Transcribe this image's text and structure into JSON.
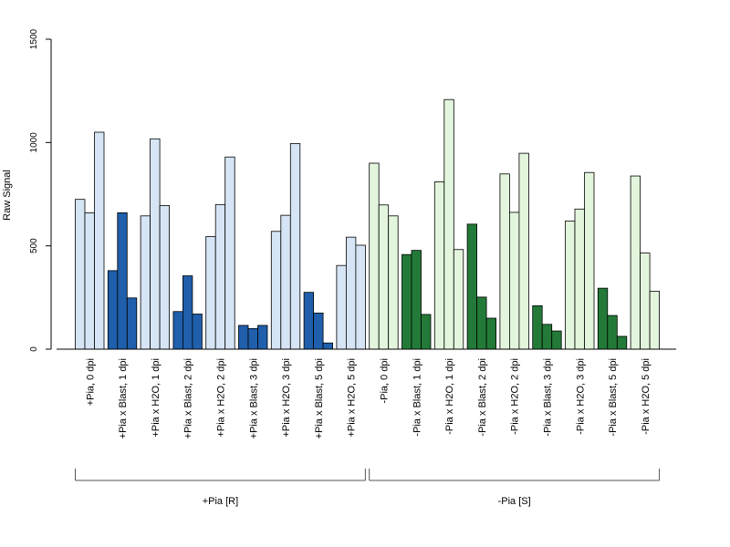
{
  "chart_data": {
    "type": "bar",
    "ylabel": "Raw Signal",
    "ylim": [
      0,
      1500
    ],
    "yticks": [
      0,
      500,
      1000,
      1500
    ],
    "categories": [
      "+Pia, 0 dpi",
      "+Pia x Blast, 1 dpi",
      "+Pia x H2O, 1 dpi",
      "+Pia x Blast, 2 dpi",
      "+Pia x H2O, 2 dpi",
      "+Pia x Blast, 3 dpi",
      "+Pia x H2O, 3 dpi",
      "+Pia x Blast, 5 dpi",
      "+Pia x H2O, 5 dpi",
      "-Pia, 0 dpi",
      "-Pia x Blast, 1 dpi",
      "-Pia x H2O, 1 dpi",
      "-Pia x Blast, 2 dpi",
      "-Pia x H2O, 2 dpi",
      "-Pia x Blast, 3 dpi",
      "-Pia x H2O, 3 dpi",
      "-Pia x Blast, 5 dpi",
      "-Pia x H2O, 5 dpi"
    ],
    "values": [
      [
        725,
        660,
        1050
      ],
      [
        380,
        660,
        248
      ],
      [
        645,
        1018,
        695
      ],
      [
        182,
        355,
        170
      ],
      [
        545,
        700,
        930
      ],
      [
        115,
        100,
        115
      ],
      [
        570,
        648,
        995
      ],
      [
        275,
        175,
        30
      ],
      [
        405,
        542,
        503
      ],
      [
        900,
        698,
        645
      ],
      [
        458,
        478,
        168
      ],
      [
        810,
        1208,
        482
      ],
      [
        605,
        252,
        150
      ],
      [
        848,
        662,
        948
      ],
      [
        210,
        120,
        88
      ],
      [
        620,
        678,
        855
      ],
      [
        295,
        163,
        62
      ],
      [
        838,
        465,
        280
      ]
    ],
    "groups": [
      {
        "label": "+Pia [R]",
        "start": 0,
        "end": 8
      },
      {
        "label": "-Pia [S]",
        "start": 9,
        "end": 17
      }
    ],
    "colors": {
      "plus_light": "#d6e5f5",
      "plus_dark": "#1f5fab",
      "minus_light": "#e3f5dc",
      "minus_dark": "#237a38",
      "stroke": "#000000",
      "axis": "#000000",
      "bracket": "#555555"
    }
  }
}
